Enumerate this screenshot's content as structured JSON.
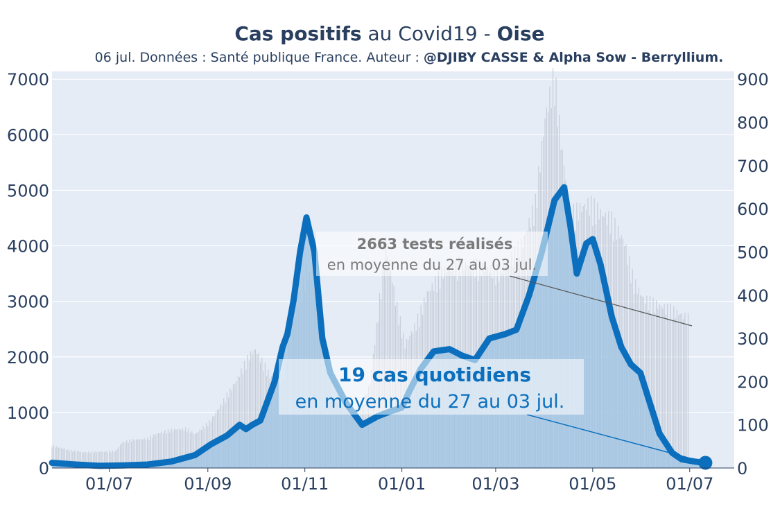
{
  "header": {
    "title_bold_1": "Cas positifs",
    "title_mid": " au Covid19 - ",
    "title_bold_2": "Oise",
    "subtitle_plain": "06 jul. Données : Santé publique France. Auteur : ",
    "subtitle_bold": "@DJIBY CASSE & Alpha Sow - Berryllium."
  },
  "annotations": {
    "tests_value": "2663 tests réalisés",
    "tests_period": "en moyenne du 27 au 03 jul.",
    "cases_value": "19 cas quotidiens",
    "cases_period": "en moyenne du 27 au 03 jul."
  },
  "colors": {
    "cases_line": "#0b6fbd",
    "cases_fill": "#9ec3e3",
    "tests_bar": "#c7cdd8",
    "plot_bg": "#e5ecf6",
    "text": "#2a3f5f",
    "tests_note": "#7a7a7a"
  },
  "chart_data": {
    "type": "line",
    "x_tick_labels": [
      "01/07",
      "01/09",
      "01/11",
      "01/01",
      "01/03",
      "01/05",
      "01/07"
    ],
    "x_tick_days": [
      36,
      98,
      159,
      220,
      279,
      340,
      401
    ],
    "x_range_days": [
      0,
      429
    ],
    "y_left_ticks": [
      0,
      1000,
      2000,
      3000,
      4000,
      5000,
      6000,
      7000
    ],
    "y_left_range": [
      0,
      7140
    ],
    "y_right_ticks": [
      0,
      100,
      200,
      300,
      400,
      500,
      600,
      700,
      800,
      900
    ],
    "y_right_range": [
      0,
      918
    ],
    "grid": true,
    "series": [
      {
        "name": "tests",
        "axis": "left",
        "style": "bars",
        "points": [
          [
            0,
            400
          ],
          [
            10,
            320
          ],
          [
            20,
            280
          ],
          [
            30,
            290
          ],
          [
            40,
            300
          ],
          [
            44,
            450
          ],
          [
            50,
            500
          ],
          [
            60,
            520
          ],
          [
            65,
            600
          ],
          [
            75,
            680
          ],
          [
            85,
            700
          ],
          [
            90,
            600
          ],
          [
            100,
            850
          ],
          [
            108,
            1200
          ],
          [
            116,
            1550
          ],
          [
            124,
            2000
          ],
          [
            128,
            2100
          ],
          [
            132,
            1900
          ],
          [
            138,
            1600
          ],
          [
            145,
            1550
          ],
          [
            152,
            2600
          ],
          [
            160,
            3500
          ],
          [
            168,
            3200
          ],
          [
            176,
            1300
          ],
          [
            184,
            1000
          ],
          [
            190,
            1000
          ],
          [
            196,
            1200
          ],
          [
            200,
            1500
          ],
          [
            210,
            4000
          ],
          [
            216,
            3000
          ],
          [
            222,
            2200
          ],
          [
            228,
            2500
          ],
          [
            236,
            3100
          ],
          [
            246,
            3500
          ],
          [
            256,
            3620
          ],
          [
            266,
            3600
          ],
          [
            272,
            3550
          ],
          [
            280,
            3500
          ],
          [
            288,
            3700
          ],
          [
            296,
            4000
          ],
          [
            304,
            4700
          ],
          [
            310,
            6200
          ],
          [
            316,
            7000
          ],
          [
            320,
            5800
          ],
          [
            326,
            4500
          ],
          [
            332,
            4600
          ],
          [
            338,
            4700
          ],
          [
            346,
            4500
          ],
          [
            352,
            4400
          ],
          [
            360,
            4000
          ],
          [
            366,
            3300
          ],
          [
            372,
            3000
          ],
          [
            380,
            2900
          ],
          [
            390,
            2800
          ],
          [
            400,
            2663
          ]
        ]
      },
      {
        "name": "cas",
        "axis": "right",
        "style": "thick-line-area",
        "points": [
          [
            0,
            12
          ],
          [
            15,
            8
          ],
          [
            30,
            5
          ],
          [
            45,
            6
          ],
          [
            60,
            8
          ],
          [
            75,
            15
          ],
          [
            90,
            30
          ],
          [
            100,
            55
          ],
          [
            110,
            75
          ],
          [
            118,
            100
          ],
          [
            122,
            90
          ],
          [
            126,
            100
          ],
          [
            131,
            110
          ],
          [
            135,
            150
          ],
          [
            140,
            200
          ],
          [
            145,
            280
          ],
          [
            148,
            310
          ],
          [
            152,
            390
          ],
          [
            156,
            500
          ],
          [
            160,
            580
          ],
          [
            165,
            500
          ],
          [
            170,
            300
          ],
          [
            175,
            220
          ],
          [
            185,
            150
          ],
          [
            195,
            100
          ],
          [
            205,
            120
          ],
          [
            212,
            130
          ],
          [
            220,
            140
          ],
          [
            225,
            180
          ],
          [
            232,
            230
          ],
          [
            240,
            270
          ],
          [
            250,
            275
          ],
          [
            258,
            260
          ],
          [
            266,
            250
          ],
          [
            275,
            300
          ],
          [
            285,
            310
          ],
          [
            292,
            320
          ],
          [
            300,
            400
          ],
          [
            308,
            500
          ],
          [
            316,
            620
          ],
          [
            322,
            650
          ],
          [
            326,
            560
          ],
          [
            330,
            450
          ],
          [
            336,
            520
          ],
          [
            340,
            530
          ],
          [
            345,
            470
          ],
          [
            352,
            350
          ],
          [
            358,
            280
          ],
          [
            364,
            240
          ],
          [
            370,
            220
          ],
          [
            376,
            150
          ],
          [
            382,
            80
          ],
          [
            390,
            35
          ],
          [
            396,
            20
          ],
          [
            404,
            15
          ],
          [
            410,
            12
          ]
        ]
      }
    ]
  }
}
